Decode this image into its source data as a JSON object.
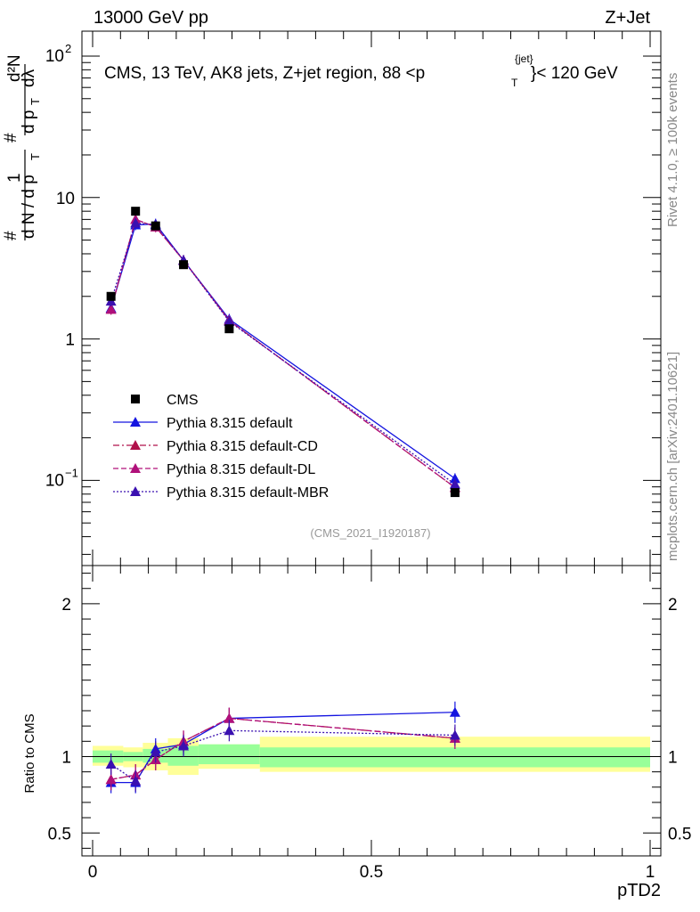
{
  "header": {
    "left": "13000 GeV pp",
    "right": "Z+Jet"
  },
  "side_labels": {
    "rivet": "Rivet 4.1.0, ≥ 100k events",
    "mcplots": "mcplots.cern.ch [arXiv:2401.10621]"
  },
  "ylabel_top": "1/N dN/dp_T d²N/(dp_T dλ)",
  "ylabel_bottom": "Ratio to CMS",
  "watermark": "(CMS_2021_I1920187)",
  "colors": {
    "cms": "#000000",
    "default": "#1414e0",
    "cd": "#b0104a",
    "dl": "#b0107a",
    "mbr": "#3a10b0",
    "band_stat": "#99ff99",
    "band_tot": "#ffff99"
  },
  "chart_data": [
    {
      "type": "scatter",
      "panel": "main",
      "title": "CMS, 13 TeV, AK8 jets, Z+jet region, 88 < p_T^{jet} < 120 GeV",
      "xlabel": "pTD2",
      "ylabel": "1/N dN/dp_T d²N/(dp_T dλ)",
      "yscale": "log",
      "xlim": [
        0,
        1
      ],
      "ylim": [
        0.025,
        150
      ],
      "yticks": [
        "10^-1",
        "1",
        "10",
        "10^2"
      ],
      "xticks": [
        "0",
        "0.5",
        "1"
      ],
      "x": [
        0.033,
        0.077,
        0.113,
        0.163,
        0.245,
        0.65
      ],
      "series": [
        {
          "name": "CMS",
          "marker": "square",
          "values": [
            2.0,
            8.0,
            6.3,
            3.35,
            1.18,
            0.082
          ]
        },
        {
          "name": "Pythia 8.315 default",
          "marker": "triangle",
          "line": "solid",
          "values": [
            1.65,
            6.4,
            6.5,
            3.6,
            1.38,
            0.103
          ]
        },
        {
          "name": "Pythia 8.315 default-CD",
          "marker": "triangle",
          "line": "dashdot",
          "values": [
            1.62,
            7.0,
            6.2,
            3.6,
            1.35,
            0.089
          ]
        },
        {
          "name": "Pythia 8.315 default-DL",
          "marker": "triangle",
          "line": "dash",
          "values": [
            1.62,
            7.0,
            6.2,
            3.6,
            1.35,
            0.089
          ]
        },
        {
          "name": "Pythia 8.315 default-MBR",
          "marker": "triangle",
          "line": "dot",
          "values": [
            1.85,
            6.6,
            6.4,
            3.6,
            1.33,
            0.094
          ]
        }
      ]
    },
    {
      "type": "line",
      "panel": "ratio",
      "xlabel": "pTD2",
      "ylabel": "Ratio to CMS",
      "xlim": [
        0,
        1
      ],
      "ylim": [
        0.35,
        2.25
      ],
      "yticks": [
        "0.5",
        "1",
        "2"
      ],
      "xticks": [
        "0",
        "0.5",
        "1"
      ],
      "x": [
        0.033,
        0.077,
        0.113,
        0.163,
        0.245,
        0.65
      ],
      "bins": [
        [
          0,
          0.055
        ],
        [
          0.055,
          0.09
        ],
        [
          0.09,
          0.135
        ],
        [
          0.135,
          0.19
        ],
        [
          0.19,
          0.3
        ],
        [
          0.3,
          1.0
        ]
      ],
      "band_stat": [
        [
          0.96,
          1.04
        ],
        [
          0.97,
          1.03
        ],
        [
          0.96,
          1.05
        ],
        [
          0.94,
          1.07
        ],
        [
          0.95,
          1.08
        ],
        [
          0.93,
          1.06
        ]
      ],
      "band_tot": [
        [
          0.94,
          1.07
        ],
        [
          0.93,
          1.06
        ],
        [
          0.91,
          1.09
        ],
        [
          0.88,
          1.12
        ],
        [
          0.92,
          1.08
        ],
        [
          0.9,
          1.13
        ]
      ],
      "series": [
        {
          "name": "Pythia 8.315 default",
          "values": [
            0.83,
            0.83,
            1.05,
            1.08,
            1.25,
            1.29
          ]
        },
        {
          "name": "Pythia 8.315 default-CD",
          "values": [
            0.85,
            0.88,
            0.98,
            1.1,
            1.25,
            1.12
          ]
        },
        {
          "name": "Pythia 8.315 default-DL",
          "values": [
            0.85,
            0.88,
            0.98,
            1.1,
            1.25,
            1.12
          ]
        },
        {
          "name": "Pythia 8.315 default-MBR",
          "values": [
            0.95,
            0.84,
            1.03,
            1.07,
            1.17,
            1.14
          ]
        }
      ]
    }
  ]
}
